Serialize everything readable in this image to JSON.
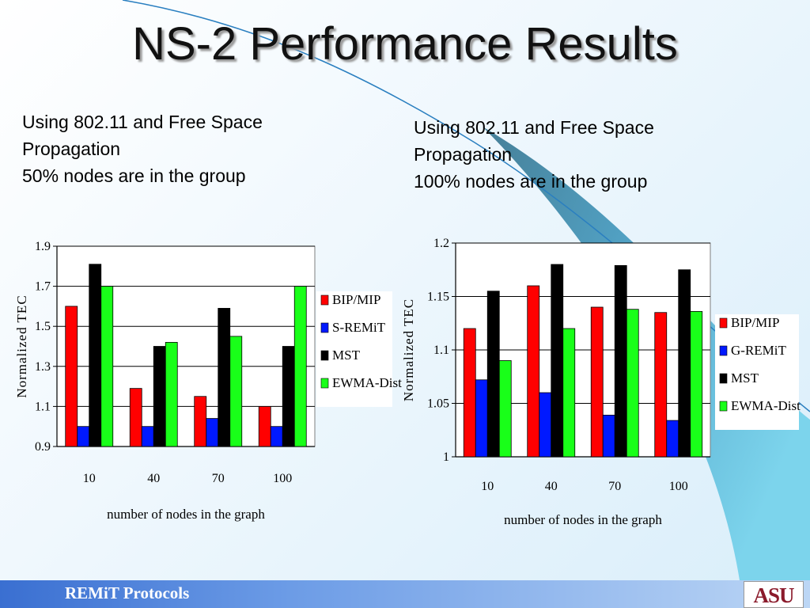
{
  "title": "NS-2 Performance Results",
  "left": {
    "desc": [
      "Using 802.11 and Free Space",
      "Propagation",
      "50% nodes are in the group"
    ]
  },
  "right": {
    "desc": [
      "Using 802.11 and Free Space",
      "Propagation",
      "100% nodes are in the group"
    ]
  },
  "footer": {
    "label": "REMiT Protocols",
    "logo": "ASU"
  },
  "colors": {
    "red": "#ff0000",
    "blue": "#0019ff",
    "black": "#000000",
    "green": "#19ff19"
  },
  "chart_data": [
    {
      "type": "bar",
      "categories": [
        "10",
        "40",
        "70",
        "100"
      ],
      "series": [
        {
          "name": "BIP/MIP",
          "values": [
            1.6,
            1.19,
            1.15,
            1.1
          ]
        },
        {
          "name": "S-REMiT",
          "values": [
            1.0,
            1.0,
            1.04,
            1.0
          ]
        },
        {
          "name": "MST",
          "values": [
            1.81,
            1.4,
            1.59,
            1.4
          ]
        },
        {
          "name": "EWMA-Dist",
          "values": [
            1.7,
            1.42,
            1.45,
            1.7
          ]
        }
      ],
      "yticks": [
        "0.9",
        "1.1",
        "1.3",
        "1.5",
        "1.7",
        "1.9"
      ],
      "ylim": [
        0.9,
        1.9
      ],
      "xlabel": "number of nodes in the graph",
      "ylabel": "Normalized TEC",
      "grid": true,
      "legend": "right"
    },
    {
      "type": "bar",
      "categories": [
        "10",
        "40",
        "70",
        "100"
      ],
      "series": [
        {
          "name": "BIP/MIP",
          "values": [
            1.12,
            1.16,
            1.14,
            1.135
          ]
        },
        {
          "name": "G-REMiT",
          "values": [
            1.072,
            1.06,
            1.039,
            1.034
          ]
        },
        {
          "name": "MST",
          "values": [
            1.155,
            1.18,
            1.179,
            1.175
          ]
        },
        {
          "name": "EWMA-Dist",
          "values": [
            1.09,
            1.12,
            1.138,
            1.136
          ]
        }
      ],
      "yticks": [
        "1",
        "1.05",
        "1.1",
        "1.15",
        "1.2"
      ],
      "ylim": [
        1.0,
        1.2
      ],
      "xlabel": "number of nodes in the graph",
      "ylabel": "Normalized TEC",
      "grid": true,
      "legend": "right"
    }
  ]
}
